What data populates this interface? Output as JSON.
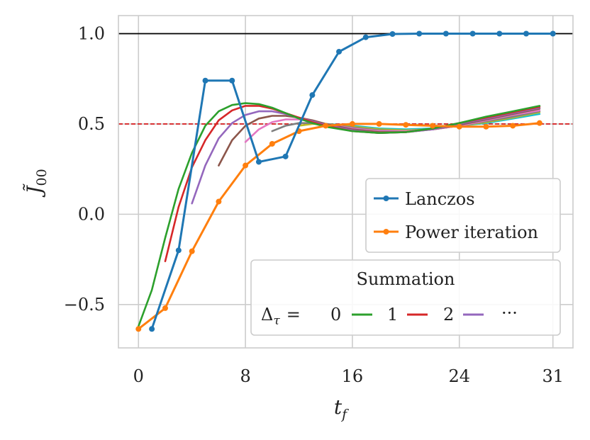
{
  "chart_data": {
    "type": "line",
    "xlabel": "t",
    "xlabel_sub": "f",
    "ylabel": "J̃",
    "ylabel_sub": "00",
    "xlim": [
      -1.5,
      32.5
    ],
    "ylim": [
      -0.74,
      1.1
    ],
    "xticks": [
      0,
      8,
      16,
      24,
      31
    ],
    "yticks": [
      1.0,
      0.5,
      0.0,
      -0.5
    ],
    "ytick_labels": [
      "1.0",
      "0.5",
      "0.0",
      "−0.5"
    ],
    "grid": true,
    "reference_lines": [
      {
        "y": 1.0,
        "color": "#000000",
        "style": "solid"
      },
      {
        "y": 0.5,
        "color": "#d62728",
        "style": "dashed"
      }
    ],
    "series": [
      {
        "name": "Lanczos",
        "color": "#1f77b4",
        "markers": true,
        "x": [
          1,
          3,
          5,
          7,
          9,
          11,
          13,
          15,
          17,
          19,
          21,
          23,
          25,
          27,
          29,
          31
        ],
        "values": [
          -0.635,
          -0.2,
          0.74,
          0.74,
          0.29,
          0.32,
          0.66,
          0.9,
          0.98,
          0.998,
          1.0,
          1.0,
          1.0,
          1.0,
          1.0,
          1.0
        ]
      },
      {
        "name": "Power iteration",
        "color": "#ff7f0e",
        "markers": true,
        "x": [
          0,
          2,
          4,
          6,
          8,
          10,
          12,
          14,
          16,
          18,
          20,
          22,
          24,
          26,
          28,
          30
        ],
        "values": [
          -0.635,
          -0.52,
          -0.205,
          0.07,
          0.27,
          0.39,
          0.46,
          0.49,
          0.5,
          0.5,
          0.495,
          0.49,
          0.485,
          0.485,
          0.49,
          0.505
        ]
      }
    ],
    "summation_series": [
      {
        "delta": 0,
        "color": "#2ca02c",
        "x": [
          0,
          1,
          2,
          3,
          4,
          5,
          6,
          7,
          8,
          9,
          10,
          11,
          12,
          13,
          14,
          16,
          18,
          20,
          22,
          24,
          26,
          28,
          30
        ],
        "values": [
          -0.62,
          -0.42,
          -0.13,
          0.14,
          0.34,
          0.49,
          0.57,
          0.605,
          0.615,
          0.61,
          0.59,
          0.56,
          0.53,
          0.505,
          0.485,
          0.46,
          0.45,
          0.455,
          0.475,
          0.505,
          0.54,
          0.57,
          0.6
        ]
      },
      {
        "delta": 1,
        "color": "#d62728",
        "x": [
          2,
          3,
          4,
          5,
          6,
          7,
          8,
          9,
          10,
          11,
          12,
          13,
          14,
          16,
          18,
          20,
          22,
          24,
          26,
          28,
          30
        ],
        "values": [
          -0.26,
          0.04,
          0.26,
          0.41,
          0.52,
          0.575,
          0.6,
          0.6,
          0.585,
          0.56,
          0.535,
          0.51,
          0.49,
          0.46,
          0.45,
          0.455,
          0.475,
          0.505,
          0.535,
          0.565,
          0.595
        ]
      },
      {
        "delta": 2,
        "color": "#9467bd",
        "x": [
          4,
          5,
          6,
          7,
          8,
          9,
          10,
          11,
          12,
          13,
          14,
          16,
          18,
          20,
          22,
          24,
          26,
          28,
          30
        ],
        "values": [
          0.06,
          0.27,
          0.42,
          0.505,
          0.55,
          0.57,
          0.57,
          0.555,
          0.535,
          0.515,
          0.495,
          0.465,
          0.45,
          0.455,
          0.47,
          0.5,
          0.53,
          0.56,
          0.59
        ]
      },
      {
        "delta": 3,
        "color": "#8c564b",
        "x": [
          6,
          7,
          8,
          9,
          10,
          11,
          12,
          13,
          14,
          16,
          18,
          20,
          22,
          24,
          26,
          28,
          30
        ],
        "values": [
          0.27,
          0.41,
          0.49,
          0.53,
          0.545,
          0.545,
          0.535,
          0.52,
          0.5,
          0.47,
          0.455,
          0.455,
          0.47,
          0.495,
          0.525,
          0.555,
          0.585
        ]
      },
      {
        "delta": 4,
        "color": "#e377c2",
        "x": [
          8,
          9,
          10,
          11,
          12,
          13,
          14,
          16,
          18,
          20,
          22,
          24,
          26,
          28,
          30
        ],
        "values": [
          0.4,
          0.47,
          0.51,
          0.525,
          0.525,
          0.515,
          0.5,
          0.475,
          0.46,
          0.46,
          0.47,
          0.49,
          0.52,
          0.55,
          0.575
        ]
      },
      {
        "delta": 5,
        "color": "#7f7f7f",
        "x": [
          10,
          11,
          12,
          13,
          14,
          16,
          18,
          20,
          22,
          24,
          26,
          28,
          30
        ],
        "values": [
          0.46,
          0.49,
          0.505,
          0.505,
          0.5,
          0.48,
          0.465,
          0.46,
          0.47,
          0.49,
          0.515,
          0.54,
          0.57
        ]
      },
      {
        "delta": 6,
        "color": "#bcbd22",
        "x": [
          12,
          13,
          14,
          16,
          18,
          20,
          22,
          24,
          26,
          28,
          30
        ],
        "values": [
          0.49,
          0.5,
          0.5,
          0.485,
          0.47,
          0.465,
          0.47,
          0.49,
          0.51,
          0.535,
          0.565
        ]
      },
      {
        "delta": 7,
        "color": "#17becf",
        "x": [
          14,
          16,
          18,
          20,
          22,
          24,
          26,
          28,
          30
        ],
        "values": [
          0.5,
          0.49,
          0.475,
          0.47,
          0.475,
          0.49,
          0.505,
          0.53,
          0.555
        ]
      }
    ],
    "legend_main": {
      "placement": "center-right",
      "entries": [
        {
          "label": "Lanczos",
          "color": "#1f77b4"
        },
        {
          "label": "Power iteration",
          "color": "#ff7f0e"
        }
      ]
    },
    "legend_summation": {
      "title": "Summation",
      "placement": "lower-right",
      "prefix": "Δ",
      "prefix_sub": "τ",
      "equals": "=",
      "entries": [
        {
          "label": "0",
          "color": "#2ca02c"
        },
        {
          "label": "1",
          "color": "#d62728"
        },
        {
          "label": "2",
          "color": "#9467bd"
        }
      ],
      "ellipsis": "···"
    }
  }
}
